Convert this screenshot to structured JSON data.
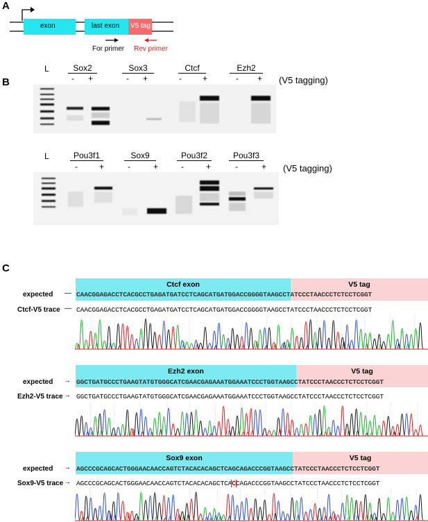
{
  "panelA": {
    "label": "A",
    "exon_label": "exon",
    "last_exon_label": "last exon",
    "tag_label": "V5 tag",
    "for_primer": "For primer",
    "rev_primer": "Rev primer",
    "colors": {
      "exon": "#25e6ee",
      "tag": "#f26d6d",
      "rev": "#e0191b"
    }
  },
  "panelB": {
    "label": "B",
    "ladder": "L",
    "minus": "-",
    "plus": "+",
    "tagging_note": "(V5 tagging)",
    "row1_genes": [
      "Sox2",
      "Sox3",
      "Ctcf",
      "Ezh2"
    ],
    "row2_genes": [
      "Pou3f1",
      "Sox9",
      "Pou3f2",
      "Pou3f3"
    ]
  },
  "panelC": {
    "label": "C",
    "v5_tag": "V5 tag",
    "expected": "expected",
    "tracks": [
      {
        "exon_name": "Ctcf exon",
        "trace_name": "Ctcf-V5 trace",
        "exon_seq": "CAACGGAGACCTCACGCCTGAGATGATCCTCAGCATGATGGACCGG",
        "tag_seq": "GGTAAGCCTATCCCTAACCCTCTCCTCGGT",
        "trace_seq": "CAACGGAGACCTCACGCCTGAGATGATCCTCAGCATGATGGACCGGGGTAAGCCTATCCCTAACCCTCTCCTCGGT"
      },
      {
        "exon_name": "Ezh2 exon",
        "trace_name": "Ezh2-V5 trace",
        "exon_seq": "GGCTGATGCCCTGAAGTATGTGGGCATCGAACGAGAAATGGAAATCCCT",
        "tag_seq": "GGTAAGCCTATCCCTAACCCTCTCCTCGGT",
        "trace_seq": "GGCTGATGCCCTGAAGTATGTGGGCATCGAACGAGAAATGGAAATCCCTGGTAAGCCTATCCCTAACCCTCTCCTCGGT"
      },
      {
        "exon_name": "Sox9 exon",
        "trace_name": "Sox9-V5 trace",
        "exon_seq": "AGCCCGCAGCACTGGGAACAACCAGTCTACACACAGCTCAGCAGACCC",
        "tag_seq": "GGTAAGCCTATCCCTAACCCTCTCCTCGGT",
        "trace_seq_a": "AGCCCGCAGCACTGGGAACAACCAGTCTACACACAGCTCA",
        "trace_mismatch": "C",
        "trace_seq_b": "CAGACCCGGTAAGCCTATCCCTAACCCTCTCCTCGGT"
      }
    ]
  }
}
